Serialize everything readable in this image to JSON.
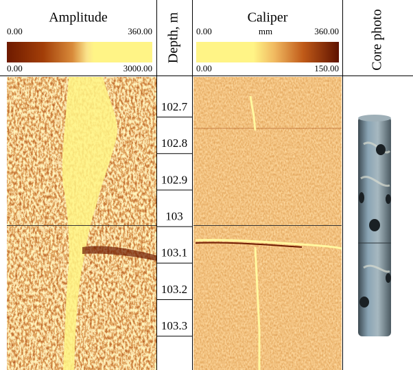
{
  "amplitude": {
    "title": "Amplitude",
    "scale_top": {
      "min": "0.00",
      "max": "360.00"
    },
    "scale_bottom": {
      "min": "0.00",
      "max": "3000.00"
    }
  },
  "depth_track": {
    "title": "Depth, m",
    "labels": [
      102.7,
      102.8,
      102.9,
      103,
      103.1,
      103.2,
      103.3
    ]
  },
  "caliper": {
    "title": "Caliper",
    "unit": "mm",
    "scale_top": {
      "min": "0.00",
      "max": "360.00"
    },
    "scale_bottom": {
      "min": "0.00",
      "max": "150.00"
    }
  },
  "core_photo": {
    "title": "Core photo"
  }
}
